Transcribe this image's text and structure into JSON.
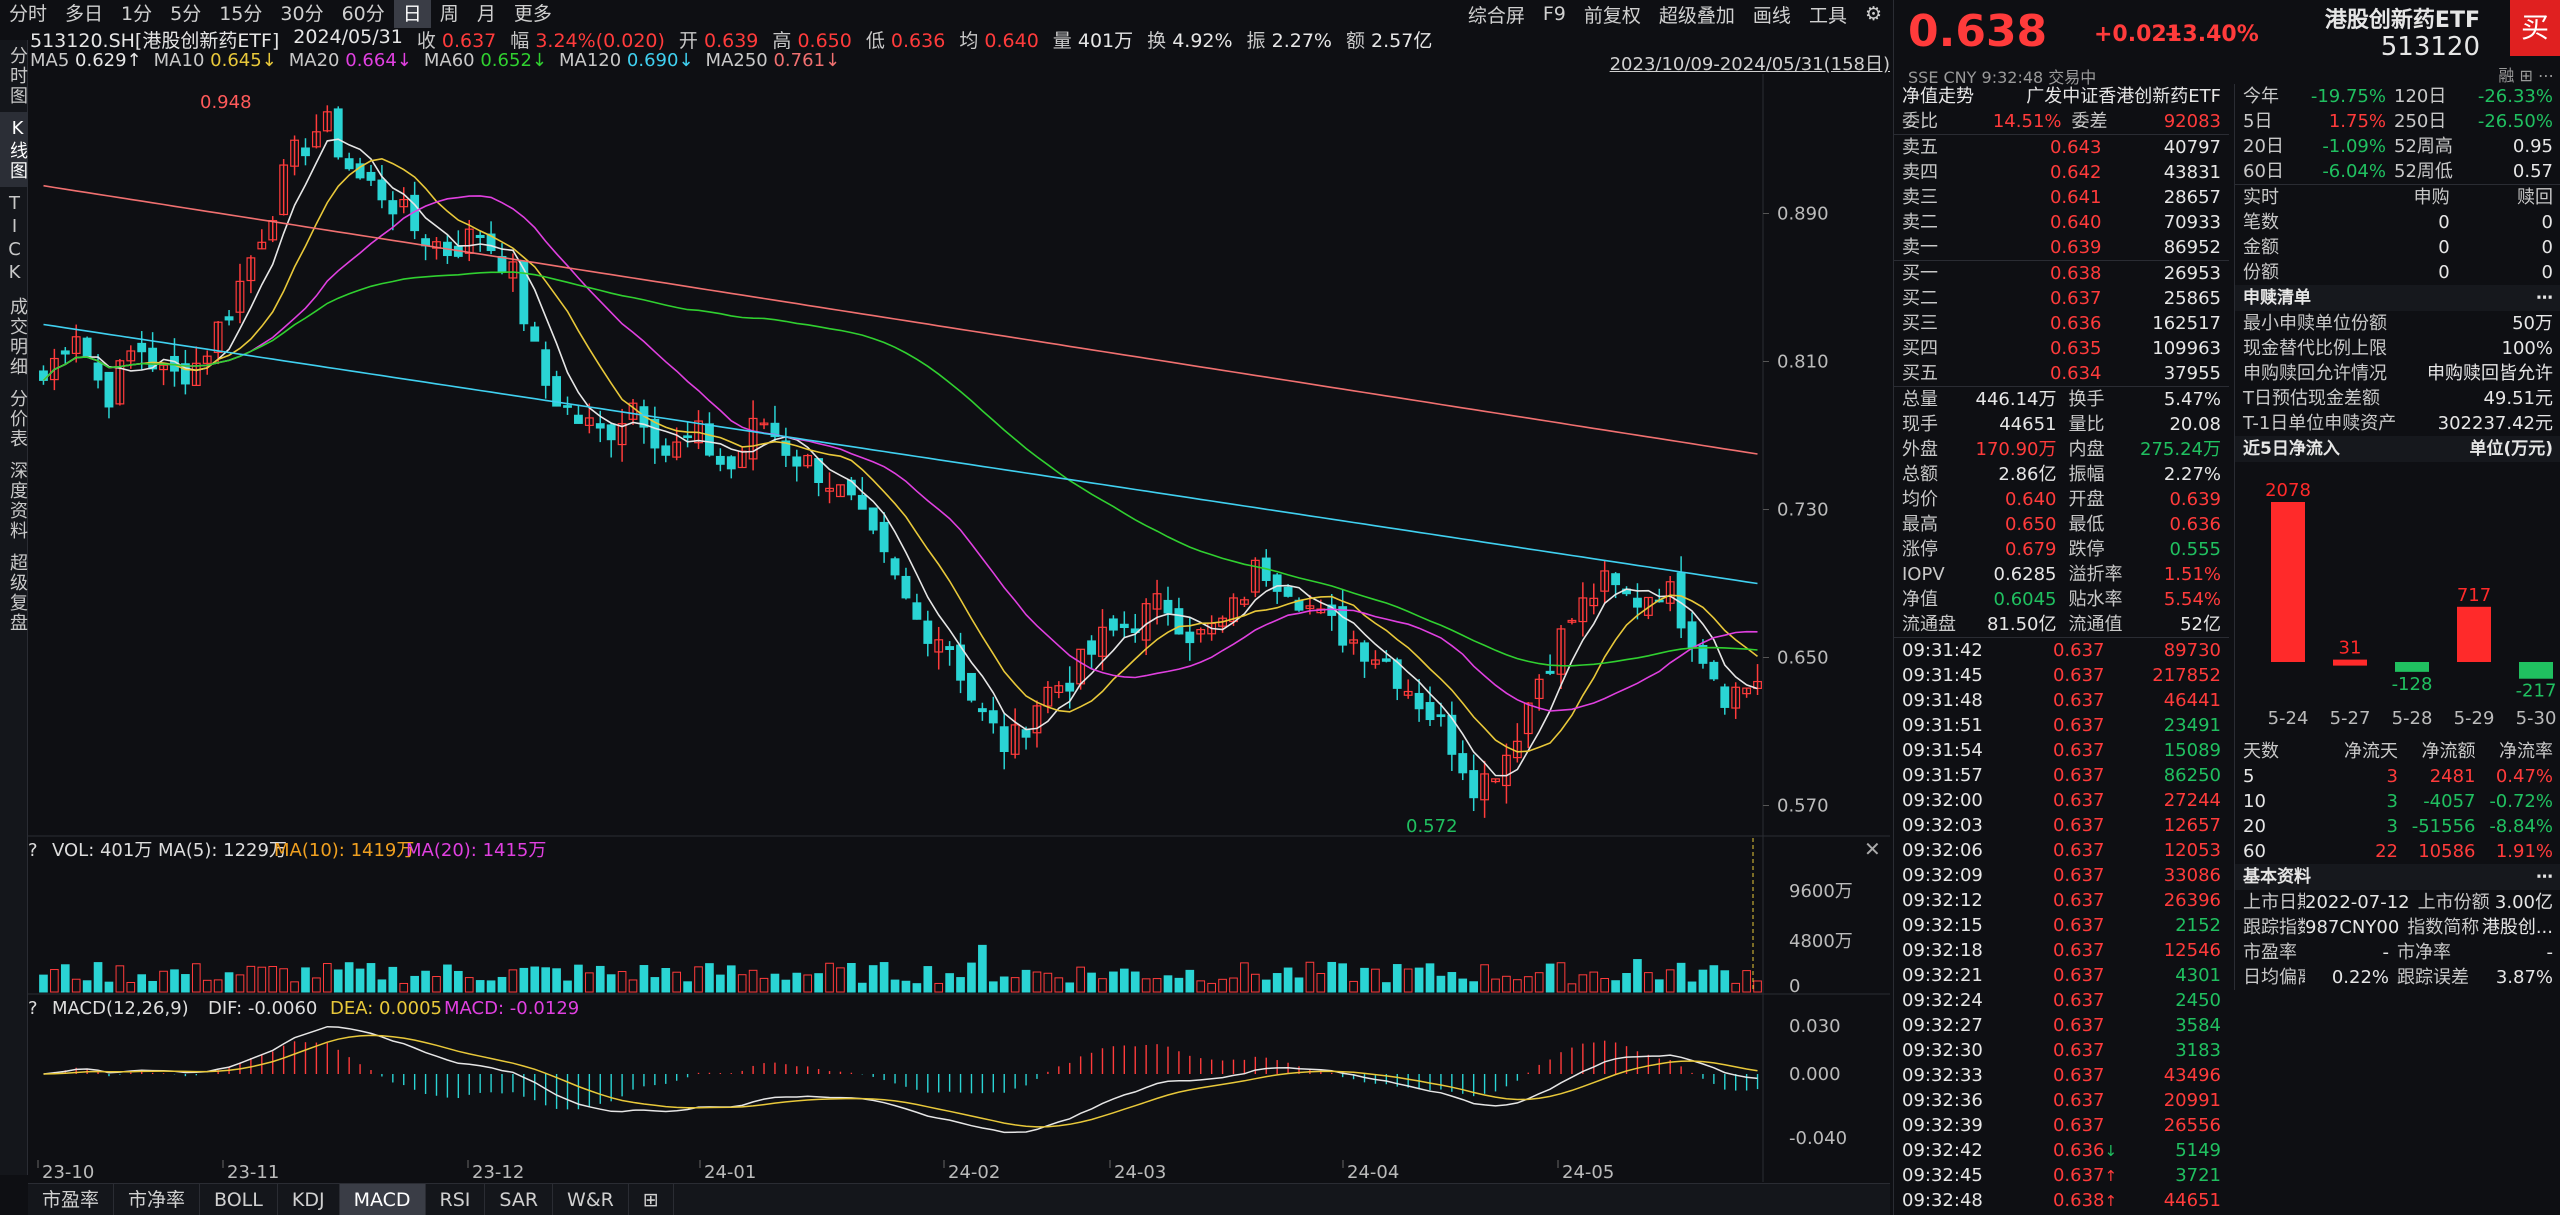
{
  "period_tabs": [
    "分时",
    "多日",
    "1分",
    "5分",
    "15分",
    "30分",
    "60分",
    "日",
    "周",
    "月",
    "更多"
  ],
  "period_active_index": 7,
  "right_tools": [
    "综合屏",
    "F9",
    "前复权",
    "超级叠加",
    "画线",
    "工具"
  ],
  "left_tabs": [
    "分时图",
    "K线图",
    "TICK",
    "成交明细",
    "分价表",
    "深度资料",
    "超级复盘"
  ],
  "left_active_index": 1,
  "info": {
    "code_name": "513120.SH[港股创新药ETF]",
    "date": "2024/05/31",
    "close_label": "收",
    "close": "0.637",
    "amp_label": "幅",
    "amp": "3.24%(0.020)",
    "open_label": "开",
    "open": "0.639",
    "high_label": "高",
    "high": "0.650",
    "low_label": "低",
    "low": "0.636",
    "avg_label": "均",
    "avg": "0.640",
    "vol_label": "量",
    "vol": "401万",
    "turn_label": "换",
    "turn": "4.92%",
    "swing_label": "振",
    "swing": "2.27%",
    "amount_label": "额",
    "amount": "2.57亿"
  },
  "ma": [
    {
      "label": "MA5",
      "value": "0.629↑",
      "color": "#e6e6e6"
    },
    {
      "label": "MA10",
      "value": "0.645↓",
      "color": "#e8c83a"
    },
    {
      "label": "MA20",
      "value": "0.664↓",
      "color": "#e040e0"
    },
    {
      "label": "MA60",
      "value": "0.652↓",
      "color": "#30d030"
    },
    {
      "label": "MA120",
      "value": "0.690↓",
      "color": "#40d0f0"
    },
    {
      "label": "MA250",
      "value": "0.761↓",
      "color": "#f07070"
    }
  ],
  "range_label": "2023/10/09-2024/05/31(158日)",
  "price_axis": [
    "0.890",
    "0.810",
    "0.730",
    "0.650",
    "0.570"
  ],
  "high_mark": "0.948",
  "low_mark": "0.572",
  "vol_header": {
    "vol": "VOL: 401万",
    "ma5": "MA(5): 1229万",
    "ma10": "MA(10): 1419万",
    "ma20": "MA(20): 1415万"
  },
  "vol_axis": [
    "9600万",
    "4800万",
    "0"
  ],
  "macd_header": {
    "name": "MACD(12,26,9)",
    "dif": "DIF: -0.0060",
    "dea": "DEA: 0.0005",
    "macd": "MACD: -0.0129"
  },
  "macd_axis": [
    "0.030",
    "0.000",
    "-0.040"
  ],
  "date_axis": [
    "23-10",
    "23-11",
    "23-12",
    "24-01",
    "24-02",
    "24-03",
    "24-04",
    "24-05"
  ],
  "bottom_tabs": [
    "市盈率",
    "市净率",
    "BOLL",
    "KDJ",
    "MACD",
    "RSI",
    "SAR",
    "W&R"
  ],
  "bottom_active_index": 4,
  "quote": {
    "last": "0.638",
    "chg": "+0.021",
    "pct": "+3.40%",
    "name": "港股创新药ETF",
    "code": "513120",
    "buy": "买",
    "sub": "SSE  CNY   9:32:48   交易中",
    "sub_tools": "融  ⊞  ⋯"
  },
  "nav_header": {
    "label": "净值走势",
    "value": "广发中证香港创新药ETF"
  },
  "weibi": {
    "label1": "委比",
    "v1": "14.51%",
    "label2": "委差",
    "v2": "92083"
  },
  "asks": [
    {
      "label": "卖五",
      "price": "0.643",
      "vol": "40797"
    },
    {
      "label": "卖四",
      "price": "0.642",
      "vol": "43831"
    },
    {
      "label": "卖三",
      "price": "0.641",
      "vol": "28657"
    },
    {
      "label": "卖二",
      "price": "0.640",
      "vol": "70933"
    },
    {
      "label": "卖一",
      "price": "0.639",
      "vol": "86952"
    }
  ],
  "bids": [
    {
      "label": "买一",
      "price": "0.638",
      "vol": "26953"
    },
    {
      "label": "买二",
      "price": "0.637",
      "vol": "25865"
    },
    {
      "label": "买三",
      "price": "0.636",
      "vol": "162517"
    },
    {
      "label": "买四",
      "price": "0.635",
      "vol": "109963"
    },
    {
      "label": "买五",
      "price": "0.634",
      "vol": "37955"
    }
  ],
  "stats": [
    {
      "l1": "总量",
      "v1": "446.14万",
      "c1": "white",
      "l2": "换手",
      "v2": "5.47%",
      "c2": "white"
    },
    {
      "l1": "现手",
      "v1": "44651",
      "c1": "white",
      "l2": "量比",
      "v2": "20.08",
      "c2": "white"
    },
    {
      "l1": "外盘",
      "v1": "170.90万",
      "c1": "up",
      "l2": "内盘",
      "v2": "275.24万",
      "c2": "down"
    },
    {
      "l1": "总额",
      "v1": "2.86亿",
      "c1": "white",
      "l2": "振幅",
      "v2": "2.27%",
      "c2": "white"
    },
    {
      "l1": "均价",
      "v1": "0.640",
      "c1": "up",
      "l2": "开盘",
      "v2": "0.639",
      "c2": "up"
    },
    {
      "l1": "最高",
      "v1": "0.650",
      "c1": "up",
      "l2": "最低",
      "v2": "0.636",
      "c2": "up"
    },
    {
      "l1": "涨停",
      "v1": "0.679",
      "c1": "up",
      "l2": "跌停",
      "v2": "0.555",
      "c2": "down"
    },
    {
      "l1": "IOPV",
      "v1": "0.6285",
      "c1": "white",
      "l2": "溢折率",
      "v2": "1.51%",
      "c2": "up"
    },
    {
      "l1": "净值",
      "v1": "0.6045",
      "c1": "down",
      "l2": "贴水率",
      "v2": "5.54%",
      "c2": "up"
    },
    {
      "l1": "流通盘",
      "v1": "81.50亿",
      "c1": "white",
      "l2": "流通值",
      "v2": "52亿",
      "c2": "white"
    }
  ],
  "ticks": [
    {
      "t": "09:31:42",
      "p": "0.637",
      "v": "89730",
      "vc": "up",
      "a": ""
    },
    {
      "t": "09:31:45",
      "p": "0.637",
      "v": "217852",
      "vc": "up",
      "a": ""
    },
    {
      "t": "09:31:48",
      "p": "0.637",
      "v": "46441",
      "vc": "up",
      "a": ""
    },
    {
      "t": "09:31:51",
      "p": "0.637",
      "v": "23491",
      "vc": "down",
      "a": ""
    },
    {
      "t": "09:31:54",
      "p": "0.637",
      "v": "15089",
      "vc": "down",
      "a": ""
    },
    {
      "t": "09:31:57",
      "p": "0.637",
      "v": "86250",
      "vc": "down",
      "a": ""
    },
    {
      "t": "09:32:00",
      "p": "0.637",
      "v": "27244",
      "vc": "up",
      "a": ""
    },
    {
      "t": "09:32:03",
      "p": "0.637",
      "v": "12657",
      "vc": "up",
      "a": ""
    },
    {
      "t": "09:32:06",
      "p": "0.637",
      "v": "12053",
      "vc": "up",
      "a": ""
    },
    {
      "t": "09:32:09",
      "p": "0.637",
      "v": "33086",
      "vc": "up",
      "a": ""
    },
    {
      "t": "09:32:12",
      "p": "0.637",
      "v": "26396",
      "vc": "up",
      "a": ""
    },
    {
      "t": "09:32:15",
      "p": "0.637",
      "v": "2152",
      "vc": "down",
      "a": ""
    },
    {
      "t": "09:32:18",
      "p": "0.637",
      "v": "12546",
      "vc": "up",
      "a": ""
    },
    {
      "t": "09:32:21",
      "p": "0.637",
      "v": "4301",
      "vc": "down",
      "a": ""
    },
    {
      "t": "09:32:24",
      "p": "0.637",
      "v": "2450",
      "vc": "down",
      "a": ""
    },
    {
      "t": "09:32:27",
      "p": "0.637",
      "v": "3584",
      "vc": "down",
      "a": ""
    },
    {
      "t": "09:32:30",
      "p": "0.637",
      "v": "3183",
      "vc": "down",
      "a": ""
    },
    {
      "t": "09:32:33",
      "p": "0.637",
      "v": "43496",
      "vc": "up",
      "a": ""
    },
    {
      "t": "09:32:36",
      "p": "0.637",
      "v": "20991",
      "vc": "up",
      "a": ""
    },
    {
      "t": "09:32:39",
      "p": "0.637",
      "v": "26556",
      "vc": "up",
      "a": ""
    },
    {
      "t": "09:32:42",
      "p": "0.636",
      "v": "5149",
      "vc": "down",
      "a": "↓"
    },
    {
      "t": "09:32:45",
      "p": "0.637",
      "v": "3721",
      "vc": "down",
      "a": "↑"
    },
    {
      "t": "09:32:48",
      "p": "0.638",
      "v": "44651",
      "vc": "up",
      "a": "↑"
    }
  ],
  "perf": [
    {
      "l1": "今年",
      "v1": "-19.75%",
      "c1": "down",
      "l2": "120日",
      "v2": "-26.33%",
      "c2": "down"
    },
    {
      "l1": "5日",
      "v1": "1.75%",
      "c1": "up",
      "l2": "250日",
      "v2": "-26.50%",
      "c2": "down"
    },
    {
      "l1": "20日",
      "v1": "-1.09%",
      "c1": "down",
      "l2": "52周高",
      "v2": "0.95",
      "c2": "white"
    },
    {
      "l1": "60日",
      "v1": "-6.04%",
      "c1": "down",
      "l2": "52周低",
      "v2": "0.57",
      "c2": "white"
    }
  ],
  "creation_table": {
    "headers": [
      "实时",
      "申购",
      "赎回"
    ],
    "rows": [
      [
        "笔数",
        "0",
        "0"
      ],
      [
        "金额",
        "0",
        "0"
      ],
      [
        "份额",
        "0",
        "0"
      ]
    ]
  },
  "creation_list": {
    "title": "申赎清单",
    "more": "⋯",
    "rows": [
      [
        "最小申赎单位份额",
        "50万"
      ],
      [
        "现金替代比例上限",
        "100%"
      ],
      [
        "申购赎回允许情况",
        "申购赎回皆允许"
      ],
      [
        "T日预估现金差额",
        "49.51元"
      ],
      [
        "T-1日单位申赎资产",
        "302237.42元"
      ]
    ]
  },
  "netflow": {
    "title": "近5日净流入",
    "unit": "单位(万元)",
    "dates": [
      "5-24",
      "5-27",
      "5-28",
      "5-29",
      "5-30"
    ],
    "values": [
      2078,
      31,
      -128,
      717,
      -217
    ]
  },
  "netflow_table": {
    "headers": [
      "天数",
      "净流天",
      "净流额",
      "净流率"
    ],
    "rows": [
      {
        "d": "5",
        "n": "3",
        "a": "2481",
        "r": "0.47%",
        "c": "up"
      },
      {
        "d": "10",
        "n": "3",
        "a": "-4057",
        "r": "-0.72%",
        "c": "down"
      },
      {
        "d": "20",
        "n": "3",
        "a": "-51556",
        "r": "-8.84%",
        "c": "down"
      },
      {
        "d": "60",
        "n": "22",
        "a": "10586",
        "r": "1.91%",
        "c": "up"
      }
    ]
  },
  "basic": {
    "title": "基本资料",
    "more": "⋯",
    "rows": [
      [
        "上市日期",
        "2022-07-12",
        "上市份额",
        "3.00亿"
      ],
      [
        "跟踪指数",
        "987CNY00",
        "指数简称",
        "港股创..."
      ],
      [
        "市盈率",
        "-",
        "市净率",
        "-"
      ],
      [
        "日均偏离",
        "0.22%",
        "跟踪误差",
        "3.87%"
      ]
    ]
  },
  "chart_data": {
    "type": "candlestick",
    "series": [
      {
        "name": "MA5",
        "color": "#e6e6e6"
      },
      {
        "name": "MA10",
        "color": "#e8c83a"
      },
      {
        "name": "MA20",
        "color": "#e040e0"
      },
      {
        "name": "MA60",
        "color": "#30d030"
      },
      {
        "name": "MA120",
        "color": "#40d0f0"
      },
      {
        "name": "MA250",
        "color": "#f07070"
      }
    ],
    "ylim": [
      0.56,
      0.96
    ],
    "approx_close_path": [
      0.8,
      0.83,
      0.79,
      0.82,
      0.8,
      0.81,
      0.84,
      0.88,
      0.92,
      0.94,
      0.91,
      0.9,
      0.88,
      0.87,
      0.88,
      0.86,
      0.8,
      0.78,
      0.77,
      0.79,
      0.76,
      0.77,
      0.75,
      0.78,
      0.76,
      0.75,
      0.73,
      0.7,
      0.67,
      0.66,
      0.62,
      0.6,
      0.63,
      0.64,
      0.66,
      0.67,
      0.68,
      0.66,
      0.67,
      0.7,
      0.69,
      0.67,
      0.66,
      0.65,
      0.63,
      0.61,
      0.58,
      0.6,
      0.64,
      0.67,
      0.69,
      0.68,
      0.69,
      0.66,
      0.63,
      0.637
    ]
  }
}
